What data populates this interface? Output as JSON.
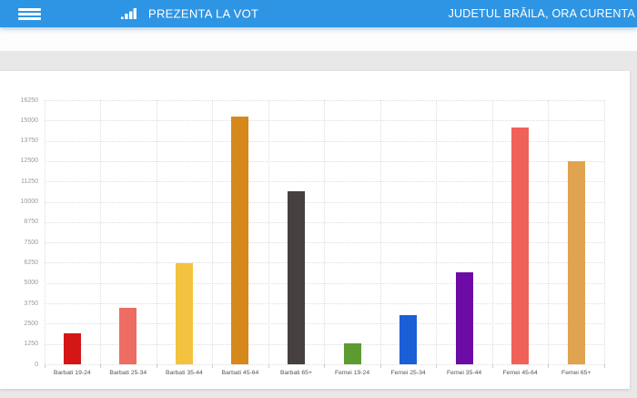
{
  "header": {
    "title": "PREZENTA LA VOT",
    "right_title": "JUDETUL BRĂILA, ORA CURENTA",
    "bg_color": "#2e95e4",
    "icons": [
      "hamburger-menu-icon",
      "bar-chart-icon"
    ]
  },
  "chart_data": {
    "type": "bar",
    "title": "",
    "xlabel": "",
    "ylabel": "",
    "categories": [
      "Barbati 19-24",
      "Barbati 25-34",
      "Barbati 35-44",
      "Barbati 45-64",
      "Barbati 65+",
      "Femei 19-24",
      "Femei 25-34",
      "Femei 35-44",
      "Femei 45-64",
      "Femei 65+"
    ],
    "values": [
      1900,
      3450,
      6200,
      15250,
      10650,
      1300,
      3000,
      5650,
      14550,
      12500
    ],
    "colors": [
      "#d41616",
      "#ed6d62",
      "#f3c33f",
      "#d6881b",
      "#474040",
      "#5b9b32",
      "#1b5fd6",
      "#6c0ba5",
      "#f0615a",
      "#e0a34f"
    ],
    "ylim": [
      0,
      16250
    ],
    "ytick_step": 1250,
    "grid": true,
    "legend_position": "none"
  }
}
